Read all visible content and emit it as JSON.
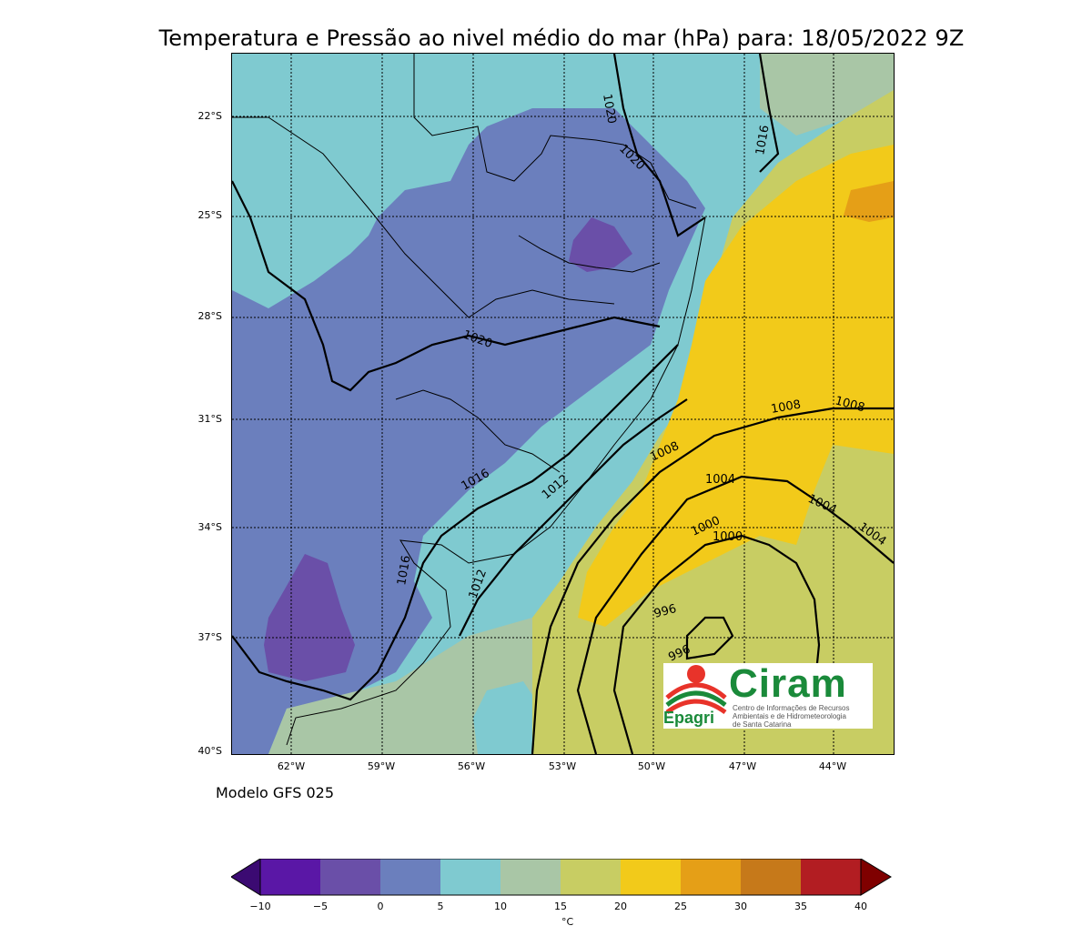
{
  "title": "Temperatura e Pressão ao nivel médio do mar (hPa) para: 18/05/2022 9Z",
  "model_label": "Modelo GFS 025",
  "lat_labels": [
    "22°S",
    "25°S",
    "28°S",
    "31°S",
    "34°S",
    "37°S",
    "40°S"
  ],
  "lon_labels": [
    "62°W",
    "59°W",
    "56°W",
    "53°W",
    "50°W",
    "47°W",
    "44°W"
  ],
  "isobar_labels": [
    "1020",
    "1020",
    "1016",
    "1020",
    "1016",
    "1016",
    "1012",
    "1012",
    "1008",
    "1008",
    "1008",
    "1004",
    "1004",
    "1004",
    "1000",
    "1000",
    "996",
    "996"
  ],
  "colorbar": {
    "ticks": [
      "−10",
      "−5",
      "0",
      "5",
      "10",
      "15",
      "20",
      "25",
      "30",
      "35",
      "40"
    ],
    "unit": "°C",
    "colors": [
      "#5a17a6",
      "#6a4fa8",
      "#6b7fbd",
      "#7fcad0",
      "#a9c6a6",
      "#c8cd63",
      "#f2ca1a",
      "#e59f17",
      "#c6791a",
      "#b21d22"
    ],
    "under_color": "#3b0a72",
    "over_color": "#7f0000"
  },
  "logo": {
    "name": "Ciram",
    "org": "Epagri",
    "subtitle_lines": [
      "Centro de Informações de Recursos",
      "Ambientais e de Hidrometeorologia",
      "de Santa Catarina"
    ]
  },
  "temperature_colors": {
    "cold": "#6b7fbd",
    "coldest": "#6a4fa8",
    "cool": "#7fcad0",
    "mild": "#a9c6a6",
    "warm": "#c8cd63",
    "warmer": "#f2ca1a",
    "hot": "#e59f17"
  }
}
